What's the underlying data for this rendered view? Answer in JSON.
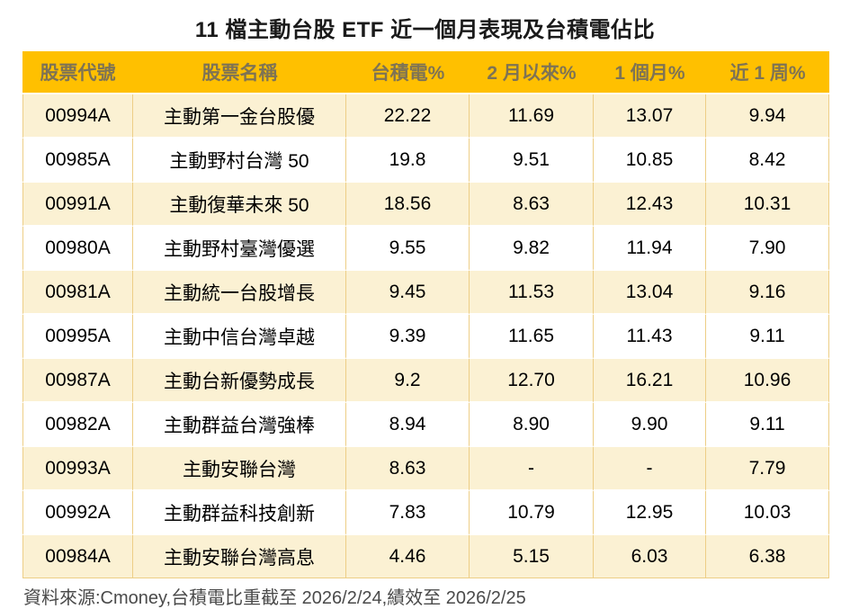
{
  "title": "11 檔主動台股 ETF 近一個月表現及台積電佔比",
  "footer": "資料來源:Cmoney,台積電比重截至 2026/2/24,績效至 2026/2/25",
  "colors": {
    "header_bg": "#FFC000",
    "header_text": "#7E7354",
    "row_alt_bg": "#FBF1D3",
    "row_bg": "#FFFFFF",
    "cell_border": "#EDCE86",
    "row_separator": "#FFFFFF",
    "title_text": "#1A1A1A",
    "footer_text": "#4A4A4A"
  },
  "chart_data": {
    "type": "table",
    "title": "11 檔主動台股 ETF 近一個月表現及台積電佔比",
    "columns": [
      "股票代號",
      "股票名稱",
      "台積電%",
      "2 月以來%",
      "1 個月%",
      "近 1 周%"
    ],
    "rows": [
      [
        "00994A",
        "主動第一金台股優",
        "22.22",
        "11.69",
        "13.07",
        "9.94"
      ],
      [
        "00985A",
        "主動野村台灣 50",
        "19.8",
        "9.51",
        "10.85",
        "8.42"
      ],
      [
        "00991A",
        "主動復華未來 50",
        "18.56",
        "8.63",
        "12.43",
        "10.31"
      ],
      [
        "00980A",
        "主動野村臺灣優選",
        "9.55",
        "9.82",
        "11.94",
        "7.90"
      ],
      [
        "00981A",
        "主動統一台股增長",
        "9.45",
        "11.53",
        "13.04",
        "9.16"
      ],
      [
        "00995A",
        "主動中信台灣卓越",
        "9.39",
        "11.65",
        "11.43",
        "9.11"
      ],
      [
        "00987A",
        "主動台新優勢成長",
        "9.2",
        "12.70",
        "16.21",
        "10.96"
      ],
      [
        "00982A",
        "主動群益台灣強棒",
        "8.94",
        "8.90",
        "9.90",
        "9.11"
      ],
      [
        "00993A",
        "主動安聯台灣",
        "8.63",
        "-",
        "-",
        "7.79"
      ],
      [
        "00992A",
        "主動群益科技創新",
        "7.83",
        "10.79",
        "12.95",
        "10.03"
      ],
      [
        "00984A",
        "主動安聯台灣高息",
        "4.46",
        "5.15",
        "6.03",
        "6.38"
      ]
    ],
    "source_note": "資料來源:Cmoney,台積電比重截至 2026/2/24,績效至 2026/2/25"
  }
}
